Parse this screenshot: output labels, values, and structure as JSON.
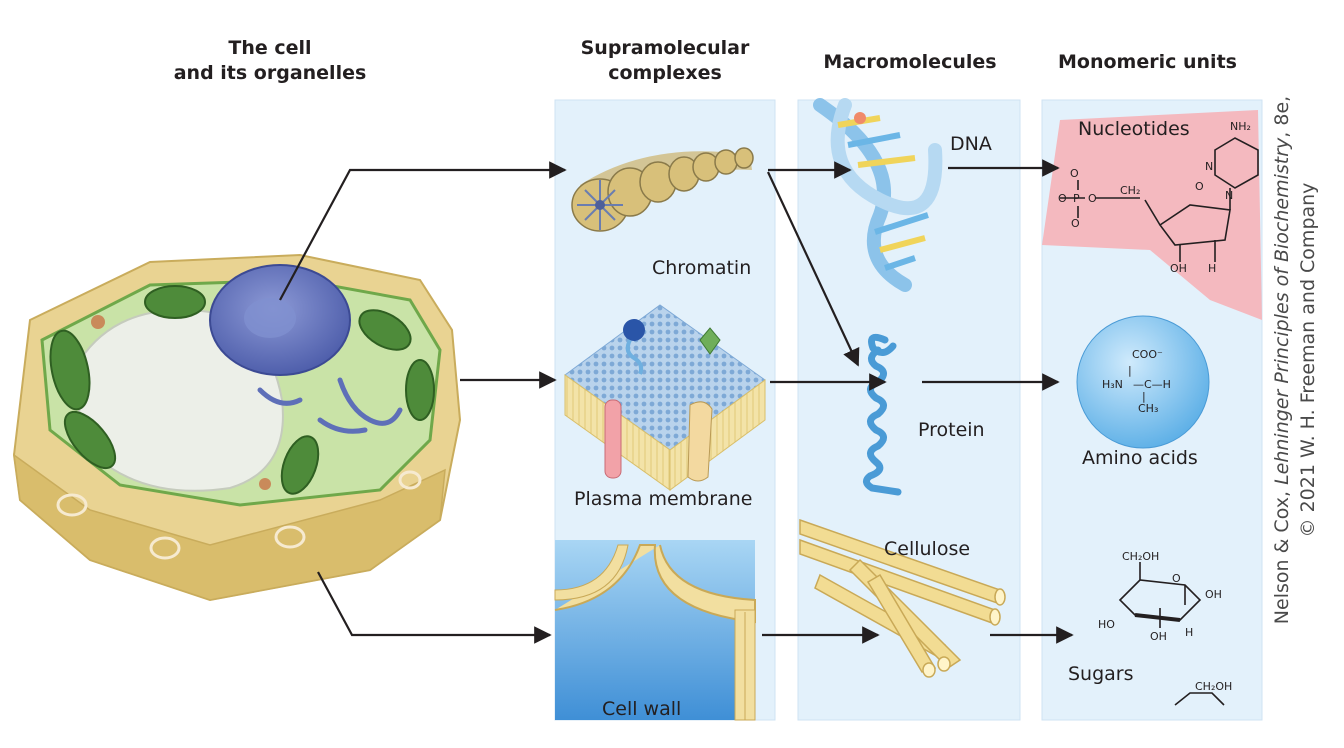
{
  "headers": {
    "cell_line1": "The cell",
    "cell_line2": "and its organelles",
    "supra_line1": "Supramolecular",
    "supra_line2": "complexes",
    "macro": "Macromolecules",
    "mono": "Monomeric units"
  },
  "labels": {
    "chromatin": "Chromatin",
    "plasma_membrane": "Plasma membrane",
    "cell_wall": "Cell wall",
    "dna": "DNA",
    "protein": "Protein",
    "cellulose": "Cellulose",
    "nucleotides": "Nucleotides",
    "amino_acids": "Amino acids",
    "sugars": "Sugars"
  },
  "credit": {
    "authors": "Nelson & Cox, ",
    "book_title": "Lehninger Principles of Biochemistry",
    "edition": ", 8e,",
    "publisher": "© 2021 W. H. Freeman and Company"
  },
  "colors": {
    "panel": "#e3f1fb",
    "arrow": "#231f20",
    "nucleotide_highlight": "#f4b9bf",
    "amino_sphere": "#7fc3ee",
    "cell_wall_tan": "#e9d392"
  }
}
